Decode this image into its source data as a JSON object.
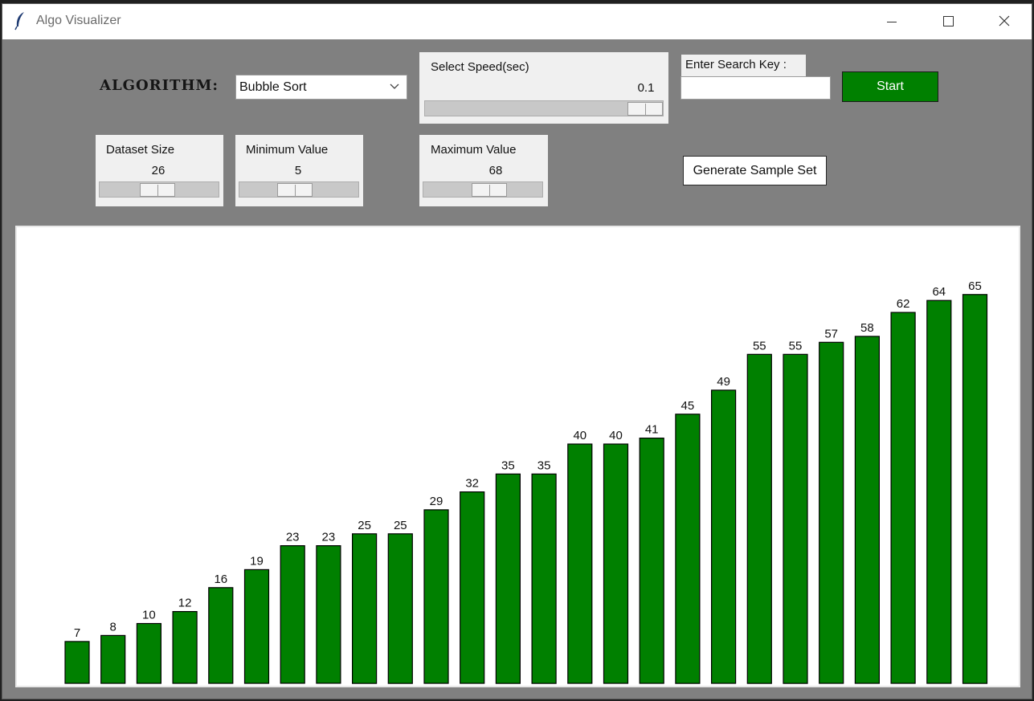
{
  "window": {
    "title": "Algo Visualizer"
  },
  "controls": {
    "algorithm_label": "ALGORITHM:",
    "algorithm_selected": "Bubble Sort",
    "speed": {
      "label": "Select Speed(sec)",
      "value": "0.1",
      "level": 1.0
    },
    "search": {
      "label": "Enter Search Key :",
      "value": ""
    },
    "start_label": "Start",
    "dataset_size": {
      "label": "Dataset Size",
      "value": "26",
      "level": 0.48
    },
    "min_value": {
      "label": "Minimum Value",
      "value": "5",
      "level": 0.45
    },
    "max_value": {
      "label": "Maximum Value",
      "value": "68",
      "level": 0.58
    },
    "generate_label": "Generate Sample Set"
  },
  "colors": {
    "bar": "#008000",
    "start_button": "#008000",
    "background": "#808080"
  },
  "chart_data": {
    "type": "bar",
    "values": [
      7,
      8,
      10,
      12,
      16,
      19,
      23,
      23,
      25,
      25,
      29,
      32,
      35,
      35,
      40,
      40,
      41,
      45,
      49,
      55,
      55,
      57,
      58,
      62,
      64,
      65
    ]
  }
}
